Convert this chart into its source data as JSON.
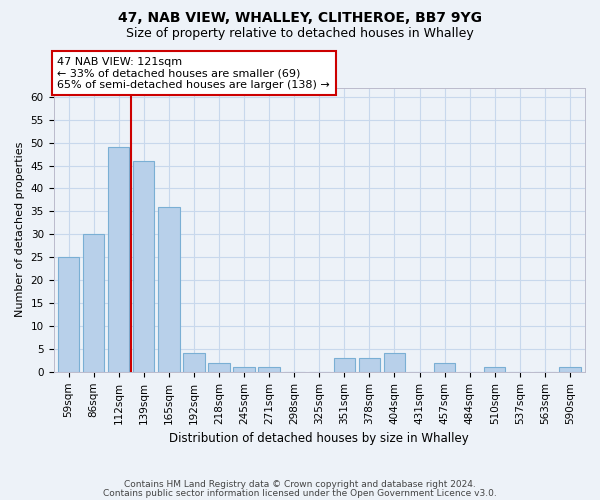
{
  "title1": "47, NAB VIEW, WHALLEY, CLITHEROE, BB7 9YG",
  "title2": "Size of property relative to detached houses in Whalley",
  "xlabel": "Distribution of detached houses by size in Whalley",
  "ylabel": "Number of detached properties",
  "categories": [
    "59sqm",
    "86sqm",
    "112sqm",
    "139sqm",
    "165sqm",
    "192sqm",
    "218sqm",
    "245sqm",
    "271sqm",
    "298sqm",
    "325sqm",
    "351sqm",
    "378sqm",
    "404sqm",
    "431sqm",
    "457sqm",
    "484sqm",
    "510sqm",
    "537sqm",
    "563sqm",
    "590sqm"
  ],
  "values": [
    25,
    30,
    49,
    46,
    36,
    4,
    2,
    1,
    1,
    0,
    0,
    3,
    3,
    4,
    0,
    2,
    0,
    1,
    0,
    0,
    1
  ],
  "bar_color": "#b8d0ea",
  "bar_edge_color": "#7aafd4",
  "vline_x": 2.5,
  "vline_color": "#cc0000",
  "annotation_text": "47 NAB VIEW: 121sqm\n← 33% of detached houses are smaller (69)\n65% of semi-detached houses are larger (138) →",
  "annotation_box_facecolor": "#ffffff",
  "annotation_box_edgecolor": "#cc0000",
  "ylim": [
    0,
    62
  ],
  "yticks": [
    0,
    5,
    10,
    15,
    20,
    25,
    30,
    35,
    40,
    45,
    50,
    55,
    60
  ],
  "grid_color": "#c8d8ec",
  "bg_color": "#edf2f8",
  "footer1": "Contains HM Land Registry data © Crown copyright and database right 2024.",
  "footer2": "Contains public sector information licensed under the Open Government Licence v3.0.",
  "title1_fontsize": 10,
  "title2_fontsize": 9,
  "ylabel_fontsize": 8,
  "xlabel_fontsize": 8.5,
  "tick_fontsize": 7.5,
  "footer_fontsize": 6.5
}
